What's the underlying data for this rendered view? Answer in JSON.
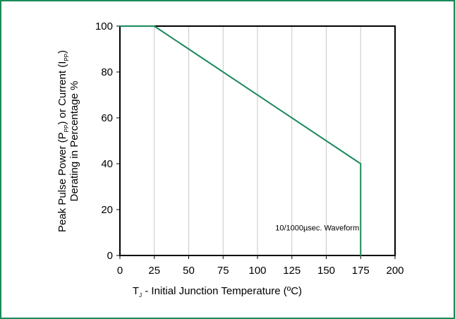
{
  "chart_data": {
    "type": "line",
    "xlabel": {
      "prefix": "T",
      "sub": "J",
      "rest": " - Initial Junction Temperature (ºC)"
    },
    "ylabel": {
      "line1_a": "Peak Pulse Power (P",
      "line1_sub1": "PP",
      "line1_b": ") or Current (I",
      "line1_sub2": "PP",
      "line1_c": ")",
      "line2": "Derating in Percentage %"
    },
    "xlim": [
      0,
      200
    ],
    "ylim": [
      0,
      100
    ],
    "x_ticks": [
      "0",
      "25",
      "50",
      "75",
      "100",
      "125",
      "150",
      "175",
      "200"
    ],
    "y_ticks": [
      "0",
      "20",
      "40",
      "60",
      "80",
      "100"
    ],
    "vertical_grid": true,
    "horizontal_grid": false,
    "series": [
      {
        "color": "#1a8a5a",
        "x": [
          0,
          25,
          175,
          175
        ],
        "y": [
          100,
          100,
          40,
          0
        ]
      }
    ],
    "annotation": {
      "text": "10/1000µsec. Waveform",
      "x": 175,
      "y": 11
    }
  }
}
